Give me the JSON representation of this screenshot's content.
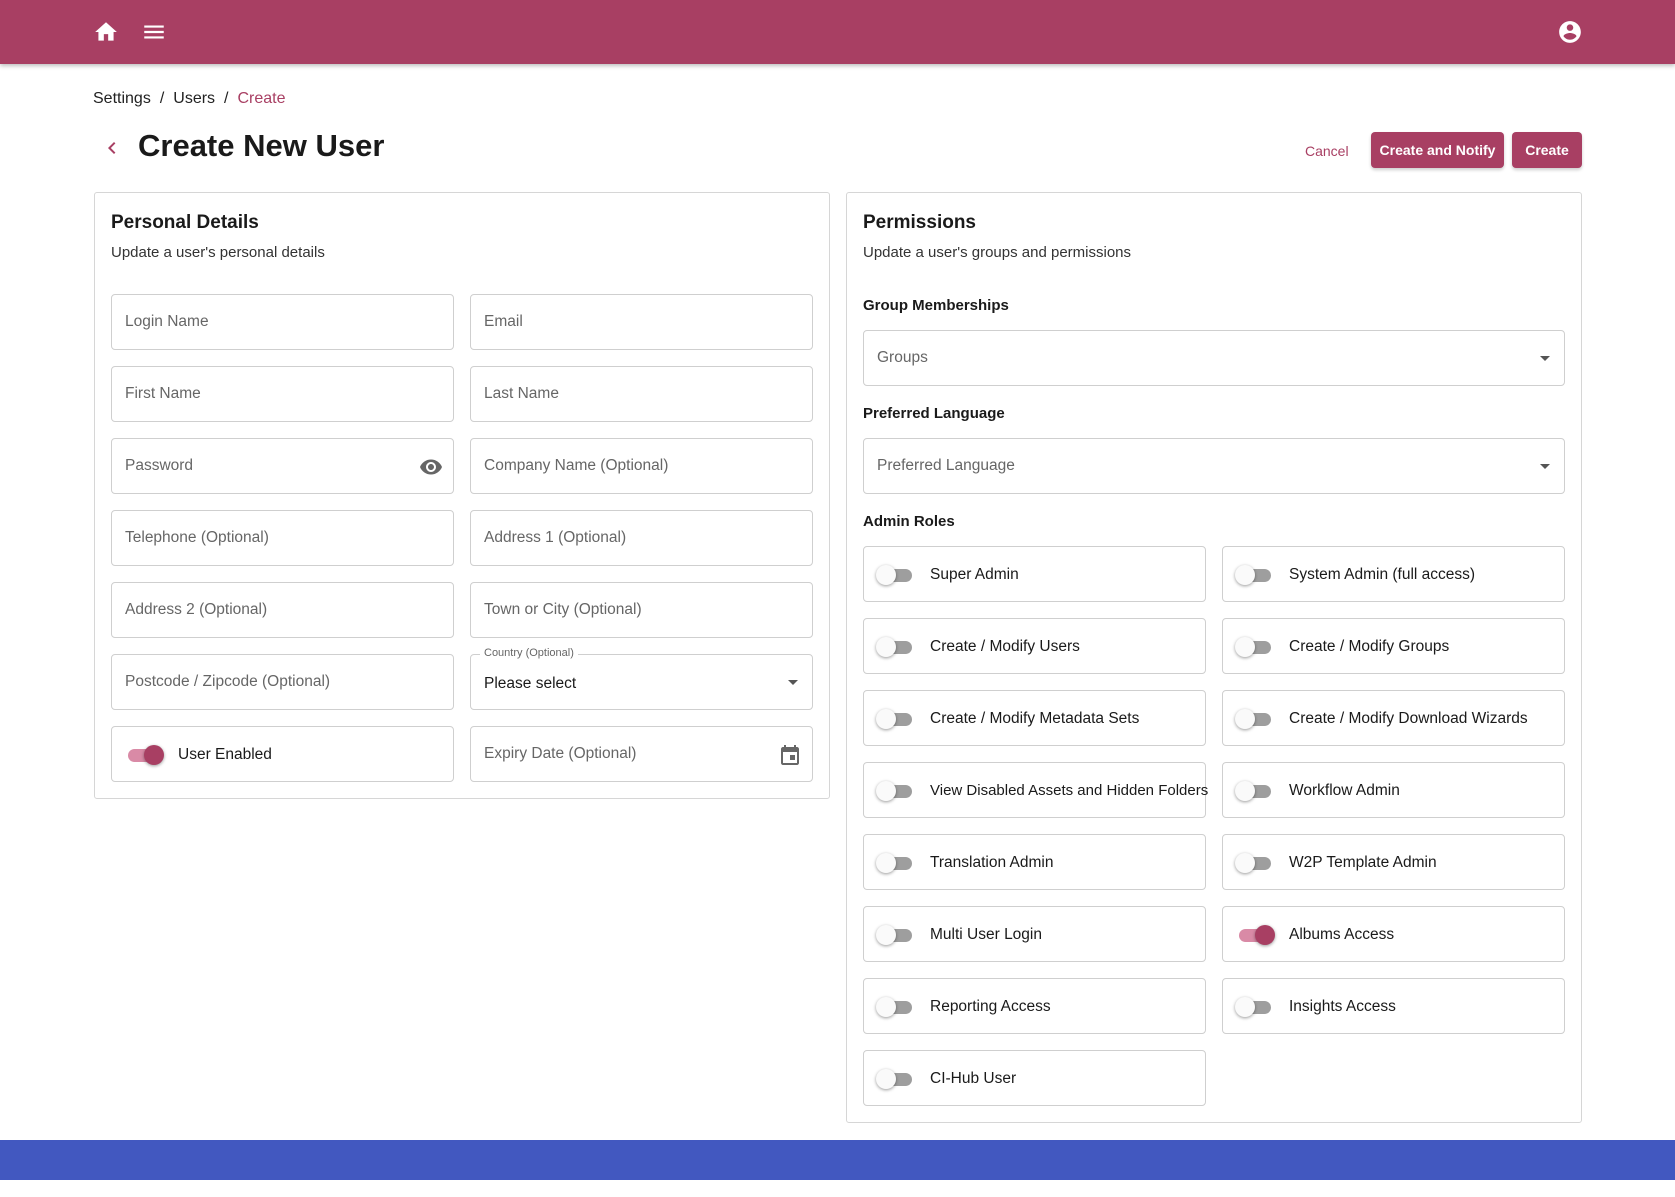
{
  "topbar": {
    "home_icon": "home-icon",
    "menu_icon": "menu-icon",
    "account_icon": "account-circle-icon",
    "color": "#a83f63"
  },
  "breadcrumb": {
    "items": [
      "Settings",
      "Users",
      "Create"
    ],
    "separator": "/"
  },
  "header": {
    "title": "Create New User",
    "back_icon": "chevron-left-icon"
  },
  "actions": {
    "cancel": "Cancel",
    "create_and_notify": "Create and Notify",
    "create": "Create"
  },
  "personal": {
    "title": "Personal Details",
    "subtitle": "Update a user's personal details",
    "fields": {
      "login_name": "Login Name",
      "email": "Email",
      "first_name": "First Name",
      "last_name": "Last Name",
      "password": "Password",
      "company": "Company Name (Optional)",
      "telephone": "Telephone (Optional)",
      "address1": "Address 1 (Optional)",
      "address2": "Address 2 (Optional)",
      "town": "Town or City (Optional)",
      "postcode": "Postcode / Zipcode (Optional)",
      "country_label": "Country (Optional)",
      "country_value": "Please select",
      "user_enabled": "User Enabled",
      "expiry": "Expiry Date (Optional)"
    },
    "user_enabled_on": true
  },
  "permissions": {
    "title": "Permissions",
    "subtitle": "Update a user's groups and permissions",
    "group_label": "Group Memberships",
    "groups_placeholder": "Groups",
    "language_label": "Preferred Language",
    "language_placeholder": "Preferred Language",
    "roles_label": "Admin Roles",
    "roles": [
      {
        "label": "Super Admin",
        "on": false
      },
      {
        "label": "System Admin (full access)",
        "on": false
      },
      {
        "label": "Create / Modify Users",
        "on": false
      },
      {
        "label": "Create / Modify Groups",
        "on": false
      },
      {
        "label": "Create / Modify Metadata Sets",
        "on": false
      },
      {
        "label": "Create / Modify Download Wizards",
        "on": false
      },
      {
        "label": "View Disabled Assets and Hidden Folders",
        "on": false
      },
      {
        "label": "Workflow Admin",
        "on": false
      },
      {
        "label": "Translation Admin",
        "on": false
      },
      {
        "label": "W2P Template Admin",
        "on": false
      },
      {
        "label": "Multi User Login",
        "on": false
      },
      {
        "label": "Albums Access",
        "on": true
      },
      {
        "label": "Reporting Access",
        "on": false
      },
      {
        "label": "Insights Access",
        "on": false
      },
      {
        "label": "CI-Hub User",
        "on": false
      }
    ]
  },
  "footer": {
    "color": "#4258c0"
  }
}
